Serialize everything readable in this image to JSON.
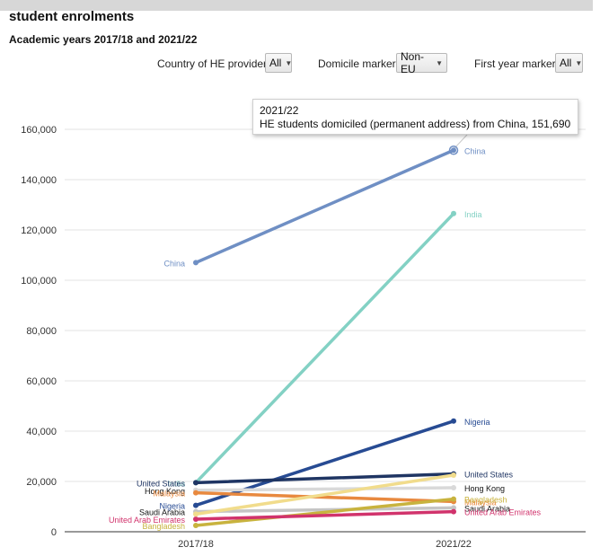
{
  "header": {
    "title": "student enrolments",
    "subtitle": "Academic years 2017/18 and 2021/22"
  },
  "filters": [
    {
      "label": "Country of HE provider",
      "value": "All"
    },
    {
      "label": "Domicile marker",
      "value": "Non-EU"
    },
    {
      "label": "First year marker",
      "value": "All"
    }
  ],
  "tooltip": {
    "line1": "2021/22",
    "line2": "HE students domiciled (permanent address) from China, 151,690"
  },
  "chart_data": {
    "type": "line",
    "categories": [
      "2017/18",
      "2021/22"
    ],
    "ylim": [
      0,
      160000
    ],
    "yticks": [
      "0",
      "20,000",
      "40,000",
      "60,000",
      "80,000",
      "100,000",
      "120,000",
      "140,000",
      "160,000"
    ],
    "series": [
      {
        "name": "China",
        "values": [
          107000,
          151690
        ],
        "color": "#6f8fc4"
      },
      {
        "name": "India",
        "values": [
          19500,
          126500
        ],
        "color": "#83d1c4"
      },
      {
        "name": "Nigeria",
        "values": [
          10500,
          44000
        ],
        "color": "#274b93"
      },
      {
        "name": "United States",
        "values": [
          19500,
          23000
        ],
        "color": "#1f3563"
      },
      {
        "name": "Hong Kong",
        "values": [
          16500,
          17500
        ],
        "color": "#d9d9d9"
      },
      {
        "name": "Malaysia",
        "values": [
          15500,
          12000
        ],
        "color": "#e8893f"
      },
      {
        "name": "Saudi Arabia",
        "values": [
          8000,
          9500
        ],
        "color": "#c5c5c5"
      },
      {
        "name": "Bangladesh",
        "values": [
          2500,
          13000
        ],
        "color": "#c8b33e"
      },
      {
        "name": "United Arab Emirates",
        "values": [
          5000,
          8000
        ],
        "color": "#d1336c"
      },
      {
        "name": "Pakistan",
        "values": [
          7000,
          22500
        ],
        "color": "#f1dc8c"
      }
    ]
  }
}
